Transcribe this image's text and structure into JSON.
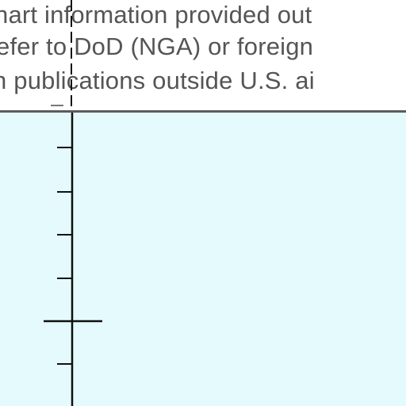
{
  "notice": {
    "lines": [
      "hart information provided out",
      "efer to DoD (NGA) or foreign",
      "n publications outside U.S. ai"
    ]
  },
  "colors": {
    "water": "#e4fafc",
    "text": "#555555",
    "border": "#5c5c5c",
    "line": "#111111"
  }
}
